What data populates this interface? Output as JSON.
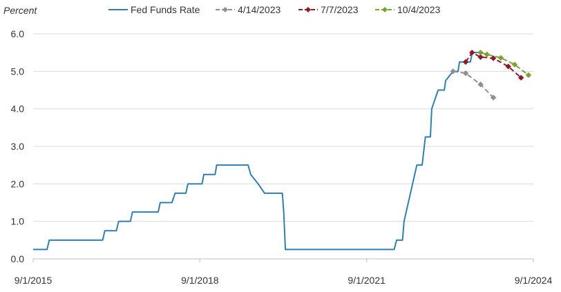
{
  "chart_data": {
    "type": "line",
    "ylabel": "Percent",
    "ylim": [
      0,
      6
    ],
    "yticks": [
      "0.0",
      "1.0",
      "2.0",
      "3.0",
      "4.0",
      "5.0",
      "6.0"
    ],
    "xlim": [
      "2015-09-01",
      "2024-09-01"
    ],
    "xticks": [
      "9/1/2015",
      "9/1/2018",
      "9/1/2021",
      "9/1/2024"
    ],
    "grid": "horizontal",
    "legend_position": "top",
    "series": [
      {
        "name": "Fed Funds Rate",
        "color": "#2e7fb0",
        "style": "solid",
        "points": [
          [
            "2015-09-01",
            0.25
          ],
          [
            "2015-12-01",
            0.25
          ],
          [
            "2015-12-16",
            0.5
          ],
          [
            "2016-12-01",
            0.5
          ],
          [
            "2016-12-15",
            0.75
          ],
          [
            "2017-03-01",
            0.75
          ],
          [
            "2017-03-16",
            1.0
          ],
          [
            "2017-06-01",
            1.0
          ],
          [
            "2017-06-15",
            1.25
          ],
          [
            "2017-12-01",
            1.25
          ],
          [
            "2017-12-14",
            1.5
          ],
          [
            "2018-03-01",
            1.5
          ],
          [
            "2018-03-22",
            1.75
          ],
          [
            "2018-06-01",
            1.75
          ],
          [
            "2018-06-14",
            2.0
          ],
          [
            "2018-09-15",
            2.0
          ],
          [
            "2018-09-27",
            2.25
          ],
          [
            "2018-12-10",
            2.25
          ],
          [
            "2018-12-20",
            2.5
          ],
          [
            "2019-07-15",
            2.5
          ],
          [
            "2019-08-01",
            2.25
          ],
          [
            "2019-09-19",
            2.0
          ],
          [
            "2019-10-31",
            1.75
          ],
          [
            "2020-02-25",
            1.75
          ],
          [
            "2020-03-05",
            1.25
          ],
          [
            "2020-03-16",
            0.25
          ],
          [
            "2022-03-01",
            0.25
          ],
          [
            "2022-03-17",
            0.5
          ],
          [
            "2022-04-25",
            0.5
          ],
          [
            "2022-05-05",
            1.0
          ],
          [
            "2022-06-16",
            1.75
          ],
          [
            "2022-07-28",
            2.5
          ],
          [
            "2022-09-01",
            2.5
          ],
          [
            "2022-09-22",
            3.25
          ],
          [
            "2022-10-25",
            3.25
          ],
          [
            "2022-11-03",
            4.0
          ],
          [
            "2022-12-15",
            4.5
          ],
          [
            "2023-01-25",
            4.5
          ],
          [
            "2023-02-02",
            4.75
          ],
          [
            "2023-03-23",
            5.0
          ],
          [
            "2023-04-25",
            5.0
          ],
          [
            "2023-05-04",
            5.25
          ],
          [
            "2023-07-15",
            5.25
          ],
          [
            "2023-07-27",
            5.5
          ],
          [
            "2023-10-04",
            5.5
          ]
        ]
      },
      {
        "name": "4/14/2023",
        "color": "#8c9096",
        "style": "dashed",
        "points": [
          [
            "2023-03-23",
            5.0
          ],
          [
            "2023-06-14",
            4.95
          ],
          [
            "2023-09-20",
            4.65
          ],
          [
            "2023-12-13",
            4.3
          ]
        ]
      },
      {
        "name": "7/7/2023",
        "color": "#8b1a2b",
        "style": "dashed",
        "points": [
          [
            "2023-06-14",
            5.25
          ],
          [
            "2023-07-26",
            5.5
          ],
          [
            "2023-09-20",
            5.38
          ],
          [
            "2023-12-13",
            5.35
          ],
          [
            "2024-03-20",
            5.13
          ],
          [
            "2024-06-12",
            4.83
          ]
        ]
      },
      {
        "name": "10/4/2023",
        "color": "#7aa336",
        "style": "dashed",
        "points": [
          [
            "2023-09-20",
            5.5
          ],
          [
            "2023-11-01",
            5.45
          ],
          [
            "2024-01-31",
            5.36
          ],
          [
            "2024-05-01",
            5.18
          ],
          [
            "2024-07-31",
            4.9
          ]
        ]
      }
    ]
  }
}
